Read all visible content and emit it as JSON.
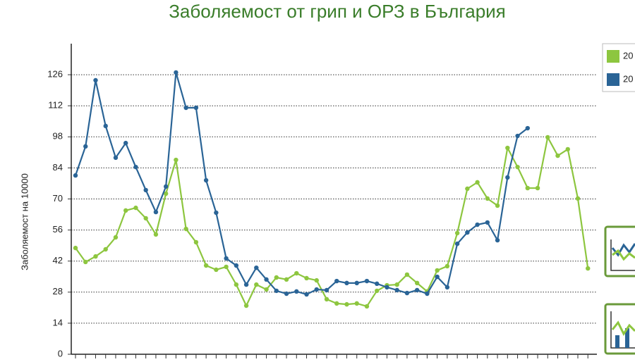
{
  "chart_data": {
    "type": "line",
    "title": "Заболяемост от грип и ОРЗ в България",
    "y_label": "Заболяемост на 10000",
    "categories": [
      null,
      null,
      null,
      null,
      null,
      null,
      null,
      null,
      null,
      null,
      null,
      null,
      null,
      null,
      null,
      null,
      null,
      null,
      null,
      null,
      null,
      null,
      null,
      null,
      null,
      null,
      null,
      null,
      null,
      null,
      null,
      null,
      null,
      null,
      null,
      null,
      null,
      null,
      null,
      null,
      null,
      null,
      null,
      null,
      null,
      null,
      null,
      null,
      null,
      null,
      null,
      null
    ],
    "series": [
      {
        "name": "20",
        "color": "#8dc63f",
        "values": [
          47.9,
          41.6,
          44.1,
          47.3,
          52.7,
          64.8,
          66,
          61.3,
          54,
          72.4,
          87.6,
          56.5,
          50.5,
          40,
          38.1,
          39.4,
          31.4,
          21.9,
          31.4,
          29.2,
          34.6,
          33.7,
          36.5,
          34.3,
          33.3,
          24.8,
          22.9,
          22.5,
          22.9,
          21.6,
          28.6,
          31.1,
          31.4,
          35.9,
          32.1,
          28.3,
          37.8,
          39.7,
          54.6,
          74.6,
          77.5,
          70.2,
          67,
          93,
          84.4,
          74.9,
          74.9,
          97.8,
          89.5,
          92.4,
          70.2,
          38.7
        ]
      },
      {
        "name": "20",
        "color": "#2a6496",
        "values": [
          80.6,
          93.7,
          123.5,
          102.9,
          88.6,
          95.2,
          84.4,
          74,
          64.1,
          75.6,
          127,
          111.1,
          111.1,
          78.4,
          63.8,
          43.2,
          40,
          31.4,
          39,
          33.7,
          28.6,
          27.3,
          28.3,
          27,
          29.2,
          28.9,
          33,
          32.1,
          32.1,
          33,
          31.8,
          30.2,
          28.9,
          27.6,
          28.9,
          27.3,
          34.9,
          30.2,
          49.8,
          54.9,
          58.4,
          59.4,
          51.4,
          79.7,
          98.4,
          101.9,
          null,
          null,
          null,
          null,
          null,
          null
        ]
      }
    ],
    "ylim": [
      0,
      140
    ],
    "yticks": [
      0,
      14,
      28,
      42,
      56,
      70,
      84,
      98,
      112,
      126
    ],
    "grid": true
  }
}
